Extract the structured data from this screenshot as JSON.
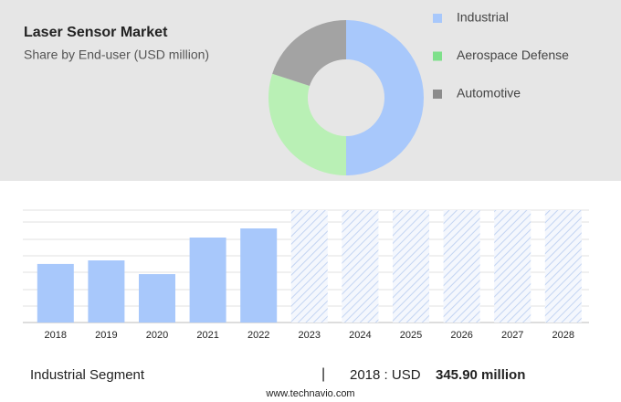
{
  "chart_data": [
    {
      "type": "donut",
      "title": "Laser Sensor Market",
      "subtitle": "Share by End-user (USD million)",
      "categories": [
        "Industrial",
        "Aerospace Defense",
        "Automotive"
      ],
      "values": [
        50,
        30,
        20
      ],
      "colors": [
        "#a8c8fb",
        "#b9f0b5",
        "#a3a3a3"
      ],
      "legend_colors": [
        "#a8c8fb",
        "#7ee08a",
        "#8c8c8c"
      ]
    },
    {
      "type": "bar",
      "categories": [
        "2018",
        "2019",
        "2020",
        "2021",
        "2022",
        "2023",
        "2024",
        "2025",
        "2026",
        "2027",
        "2028"
      ],
      "values": [
        345.9,
        367,
        286,
        502,
        556,
        null,
        null,
        null,
        null,
        null,
        null
      ],
      "color": "#a8c8fb",
      "ylim": [
        0,
        664
      ],
      "grid": true
    }
  ],
  "footer": {
    "segment": "Industrial Segment",
    "divider": "|",
    "year_label": "2018 : USD",
    "value": "345.90 million",
    "source": "www.technavio.com"
  }
}
